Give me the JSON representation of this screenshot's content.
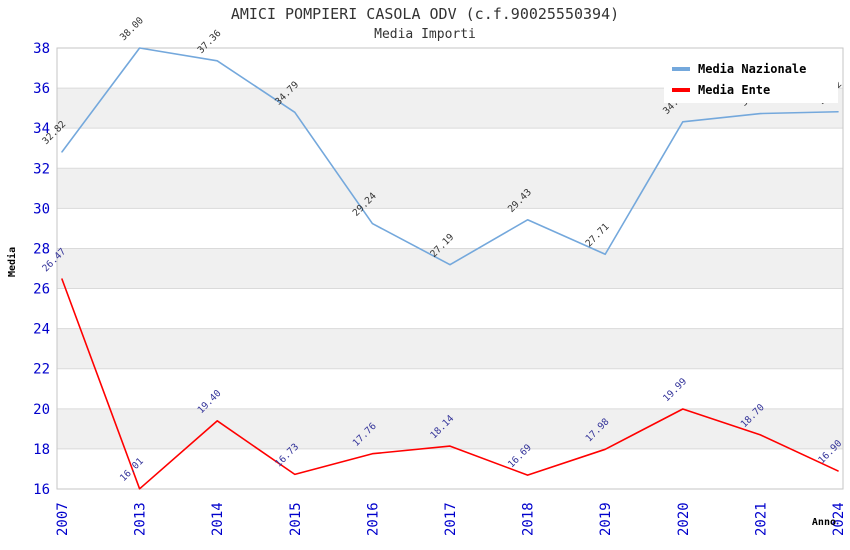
{
  "title": "AMICI POMPIERI CASOLA ODV (c.f.90025550394)",
  "subtitle": "Media Importi",
  "colors": {
    "band": "#F0F0F0",
    "grid": "#DADADA",
    "frame": "#C6C6C6",
    "tick_label": "#0000CC",
    "title": "#333333",
    "legend_bg": "#FFFFFF",
    "nazionale_line": "#74A8DC",
    "nazionale_label": "#333333",
    "ente_line": "#FF0000",
    "ente_label": "#333399"
  },
  "chart_data": {
    "type": "line",
    "title": "AMICI POMPIERI CASOLA ODV (c.f.90025550394)",
    "subtitle": "Media Importi",
    "xlabel": "Anno",
    "ylabel": "Media",
    "ylim": [
      16,
      38
    ],
    "ytick_step": 2,
    "yticks": [
      16,
      18,
      20,
      22,
      24,
      26,
      28,
      30,
      32,
      34,
      36,
      38
    ],
    "grid": "horizontal-bands",
    "legend_position": "top-right",
    "categories": [
      "2007",
      "2013",
      "2014",
      "2015",
      "2016",
      "2017",
      "2018",
      "2019",
      "2020",
      "2021",
      "2024"
    ],
    "series": [
      {
        "name": "Media Nazionale",
        "color": "#74A8DC",
        "label_color": "#333333",
        "values": [
          32.82,
          38.0,
          37.36,
          34.79,
          29.24,
          27.19,
          29.43,
          27.71,
          34.32,
          34.73,
          34.82
        ]
      },
      {
        "name": "Media Ente",
        "color": "#FF0000",
        "label_color": "#333399",
        "values": [
          26.47,
          16.01,
          19.4,
          16.73,
          17.76,
          18.14,
          16.69,
          17.98,
          19.99,
          18.7,
          16.9
        ]
      }
    ]
  }
}
